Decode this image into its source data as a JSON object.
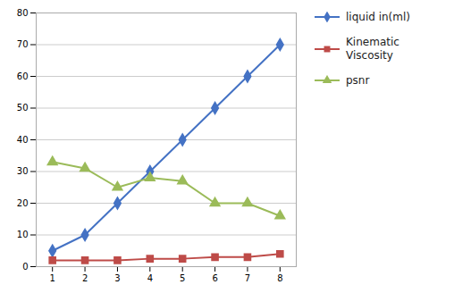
{
  "chart_data": {
    "type": "line",
    "x": [
      1,
      2,
      3,
      4,
      5,
      6,
      7,
      8
    ],
    "series": [
      {
        "name": "liquid in(ml)",
        "color": "#4472C4",
        "marker": "diamond",
        "values": [
          5,
          10,
          20,
          30,
          40,
          50,
          60,
          70
        ]
      },
      {
        "name": "Kinematic\nViscosity",
        "color": "#BE4B48",
        "marker": "square",
        "values": [
          2,
          2,
          2,
          2.5,
          2.5,
          3,
          3,
          4
        ]
      },
      {
        "name": "psnr",
        "color": "#9BBB59",
        "marker": "triangle",
        "values": [
          33,
          31,
          25,
          28,
          27,
          20,
          20,
          16
        ]
      }
    ],
    "xlim": [
      0.5,
      8.5
    ],
    "xticks": [
      1,
      2,
      3,
      4,
      5,
      6,
      7,
      8
    ],
    "ylim": [
      0,
      80
    ],
    "yticks": [
      0,
      10,
      20,
      30,
      40,
      50,
      60,
      70,
      80
    ],
    "grid": "y",
    "legend": "right"
  }
}
